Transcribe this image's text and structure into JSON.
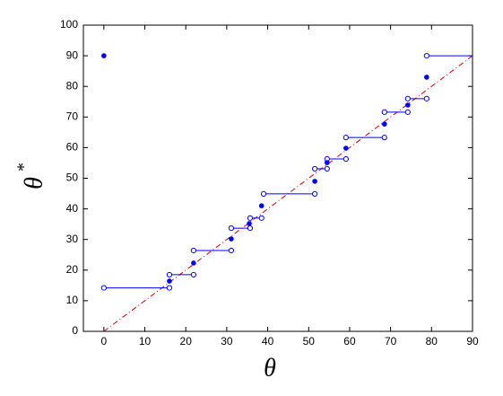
{
  "chart_data": {
    "type": "interval-scatter",
    "xlabel": "θ",
    "ylabel": "θ",
    "ylabel_superscript": "*",
    "xlim": [
      -5,
      90
    ],
    "xticks": [
      0,
      10,
      20,
      30,
      40,
      50,
      60,
      70,
      80,
      90
    ],
    "ylim": [
      0,
      100
    ],
    "yticks": [
      0,
      10,
      20,
      30,
      40,
      50,
      60,
      70,
      80,
      90,
      100
    ],
    "color": "#0000ff",
    "reference_color": "#cc0000",
    "segments": [
      {
        "x": [
          0,
          16
        ],
        "y": 14.2
      },
      {
        "x": [
          16,
          21.9
        ],
        "y": 18.5
      },
      {
        "x": [
          21.9,
          31.1
        ],
        "y": 26.4
      },
      {
        "x": [
          31.1,
          35.7
        ],
        "y": 33.7
      },
      {
        "x": [
          35.7,
          38.5
        ],
        "y": 37
      },
      {
        "x": [
          39,
          51.5
        ],
        "y": 44.9
      },
      {
        "x": [
          51.5,
          54.5
        ],
        "y": 53.1
      },
      {
        "x": [
          54.5,
          59.1
        ],
        "y": 56.3
      },
      {
        "x": [
          59.1,
          68.5
        ],
        "y": 63.3
      },
      {
        "x": [
          68.5,
          74.2
        ],
        "y": 71.6
      },
      {
        "x": [
          74.2,
          78.8
        ],
        "y": 76
      },
      {
        "x": [
          78.8,
          90
        ],
        "y": 90
      }
    ],
    "points": {
      "x": [
        0,
        16,
        21.9,
        31.1,
        35.5,
        38.5,
        51.5,
        54.5,
        59.1,
        68.5,
        74.2,
        78.8
      ],
      "y": [
        90,
        16.4,
        22.3,
        30.2,
        35.2,
        41,
        49,
        55.1,
        59.8,
        67.7,
        73.9,
        83
      ]
    },
    "reference_line": {
      "x": [
        0,
        90
      ],
      "y": [
        0,
        90
      ]
    }
  }
}
